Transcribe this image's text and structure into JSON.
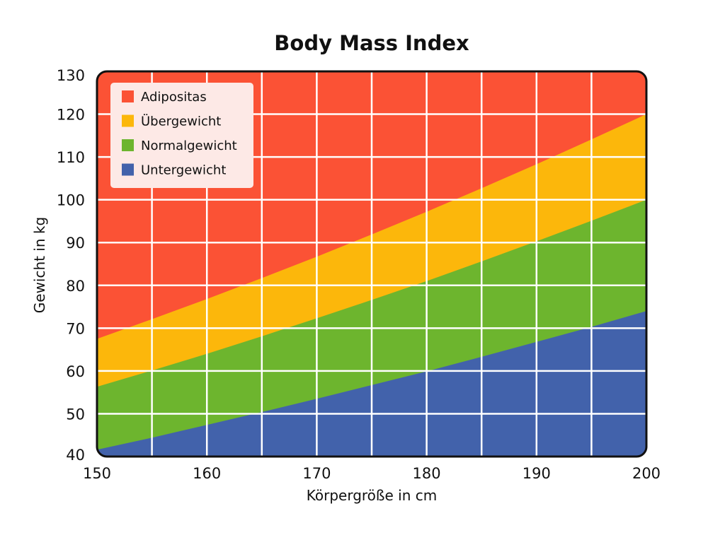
{
  "chart_data": {
    "type": "area",
    "title": "Body Mass Index",
    "xlabel": "Körpergröße in cm",
    "ylabel": "Gewicht in kg",
    "xlim": [
      150,
      200
    ],
    "ylim": [
      40,
      130
    ],
    "x_ticks": [
      150,
      160,
      170,
      180,
      190,
      200
    ],
    "y_ticks": [
      40,
      50,
      60,
      70,
      80,
      90,
      100,
      110,
      120,
      130
    ],
    "grid": true,
    "legend_position": "top-left",
    "x": [
      150,
      155,
      160,
      165,
      170,
      175,
      180,
      185,
      190,
      195,
      200
    ],
    "boundaries": [
      {
        "between": [
          "Untergewicht",
          "Normalgewicht"
        ],
        "values": [
          41.6,
          44.4,
          47.4,
          50.4,
          53.5,
          56.7,
          59.9,
          63.3,
          66.8,
          70.3,
          74.0
        ]
      },
      {
        "between": [
          "Normalgewicht",
          "Übergewicht"
        ],
        "values": [
          56.3,
          60.1,
          64.0,
          68.1,
          72.3,
          76.6,
          81.0,
          85.6,
          90.3,
          95.1,
          100.0
        ]
      },
      {
        "between": [
          "Übergewicht",
          "Adipositas"
        ],
        "values": [
          67.5,
          72.1,
          76.8,
          81.7,
          86.7,
          91.9,
          97.2,
          102.7,
          108.3,
          114.1,
          120.0
        ]
      }
    ],
    "series": [
      {
        "name": "Adipositas",
        "color": "#fb5235"
      },
      {
        "name": "Übergewicht",
        "color": "#fcb70b"
      },
      {
        "name": "Normalgewicht",
        "color": "#6db52e"
      },
      {
        "name": "Untergewicht",
        "color": "#4262ab"
      }
    ]
  }
}
